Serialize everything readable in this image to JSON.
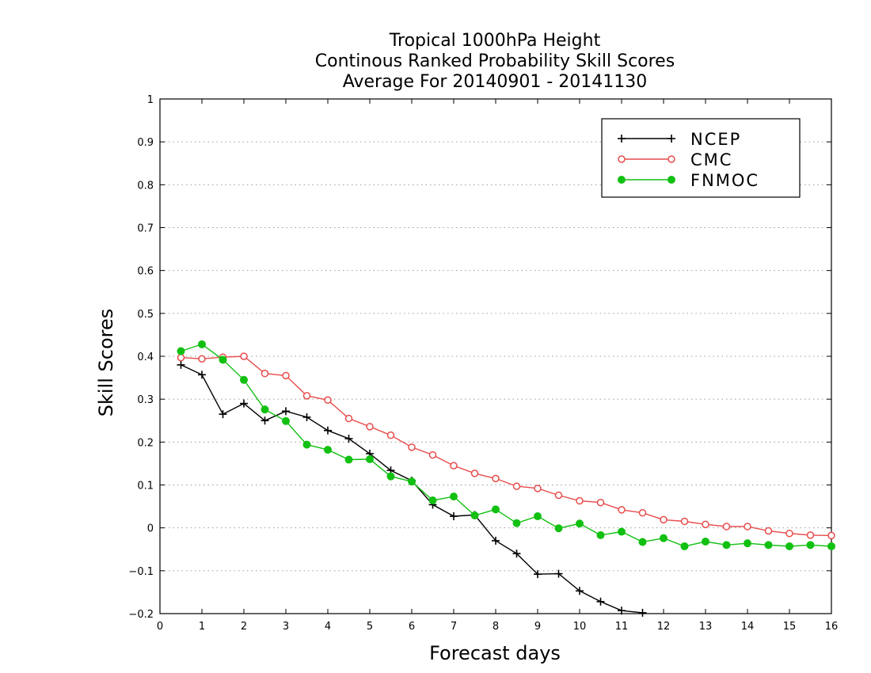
{
  "chart_data": {
    "type": "line",
    "title": [
      "Tropical 1000hPa Height",
      "Continous Ranked Probability Skill Scores",
      "Average For 20140901 - 20141130"
    ],
    "xlabel": "Forecast days",
    "ylabel": "Skill Scores",
    "xlim": [
      0,
      16
    ],
    "ylim": [
      -0.2,
      1
    ],
    "xticks": [
      "0",
      "1",
      "2",
      "3",
      "4",
      "5",
      "6",
      "7",
      "8",
      "9",
      "10",
      "11",
      "12",
      "13",
      "14",
      "15",
      "16"
    ],
    "yticks": [
      "−0.2",
      "−0.1",
      "0",
      "0.1",
      "0.2",
      "0.3",
      "0.4",
      "0.5",
      "0.6",
      "0.7",
      "0.8",
      "0.9",
      "1"
    ],
    "ytick_values": [
      -0.2,
      -0.1,
      0,
      0.1,
      0.2,
      0.3,
      0.4,
      0.5,
      0.6,
      0.7,
      0.8,
      0.9,
      1
    ],
    "grid": "horizontal dotted",
    "legend_position": "top-right",
    "x": [
      0.5,
      1,
      1.5,
      2,
      2.5,
      3,
      3.5,
      4,
      4.5,
      5,
      5.5,
      6,
      6.5,
      7,
      7.5,
      8,
      8.5,
      9,
      9.5,
      10,
      10.5,
      11,
      11.5,
      12,
      12.5,
      13,
      13.5,
      14,
      14.5,
      15,
      15.5,
      16
    ],
    "series": [
      {
        "name": "NCEP",
        "color": "#000000",
        "marker": "plus",
        "values": [
          0.38,
          0.357,
          0.265,
          0.29,
          0.25,
          0.272,
          0.258,
          0.227,
          0.208,
          0.173,
          0.134,
          0.11,
          0.054,
          0.027,
          0.03,
          -0.03,
          -0.06,
          -0.108,
          -0.107,
          -0.147,
          -0.172,
          -0.193,
          -0.198,
          null,
          null,
          null,
          null,
          null,
          null,
          null,
          null,
          null
        ]
      },
      {
        "name": "CMC",
        "color": "#e84c4c",
        "marker": "open-circle",
        "values": [
          0.397,
          0.394,
          0.398,
          0.4,
          0.36,
          0.355,
          0.308,
          0.298,
          0.255,
          0.236,
          0.216,
          0.188,
          0.17,
          0.145,
          0.127,
          0.115,
          0.097,
          0.092,
          0.076,
          0.063,
          0.059,
          0.042,
          0.035,
          0.019,
          0.015,
          0.008,
          0.003,
          0.003,
          -0.007,
          -0.013,
          -0.017,
          -0.018
        ]
      },
      {
        "name": "FNMOC",
        "color": "#12c012",
        "marker": "filled-circle",
        "values": [
          0.412,
          0.428,
          0.392,
          0.345,
          0.276,
          0.249,
          0.194,
          0.182,
          0.159,
          0.16,
          0.12,
          0.108,
          0.064,
          0.073,
          0.029,
          0.043,
          0.011,
          0.027,
          -0.001,
          0.01,
          -0.017,
          -0.009,
          -0.033,
          -0.024,
          -0.043,
          -0.032,
          -0.04,
          -0.036,
          -0.04,
          -0.043,
          -0.04,
          -0.043
        ]
      }
    ]
  }
}
